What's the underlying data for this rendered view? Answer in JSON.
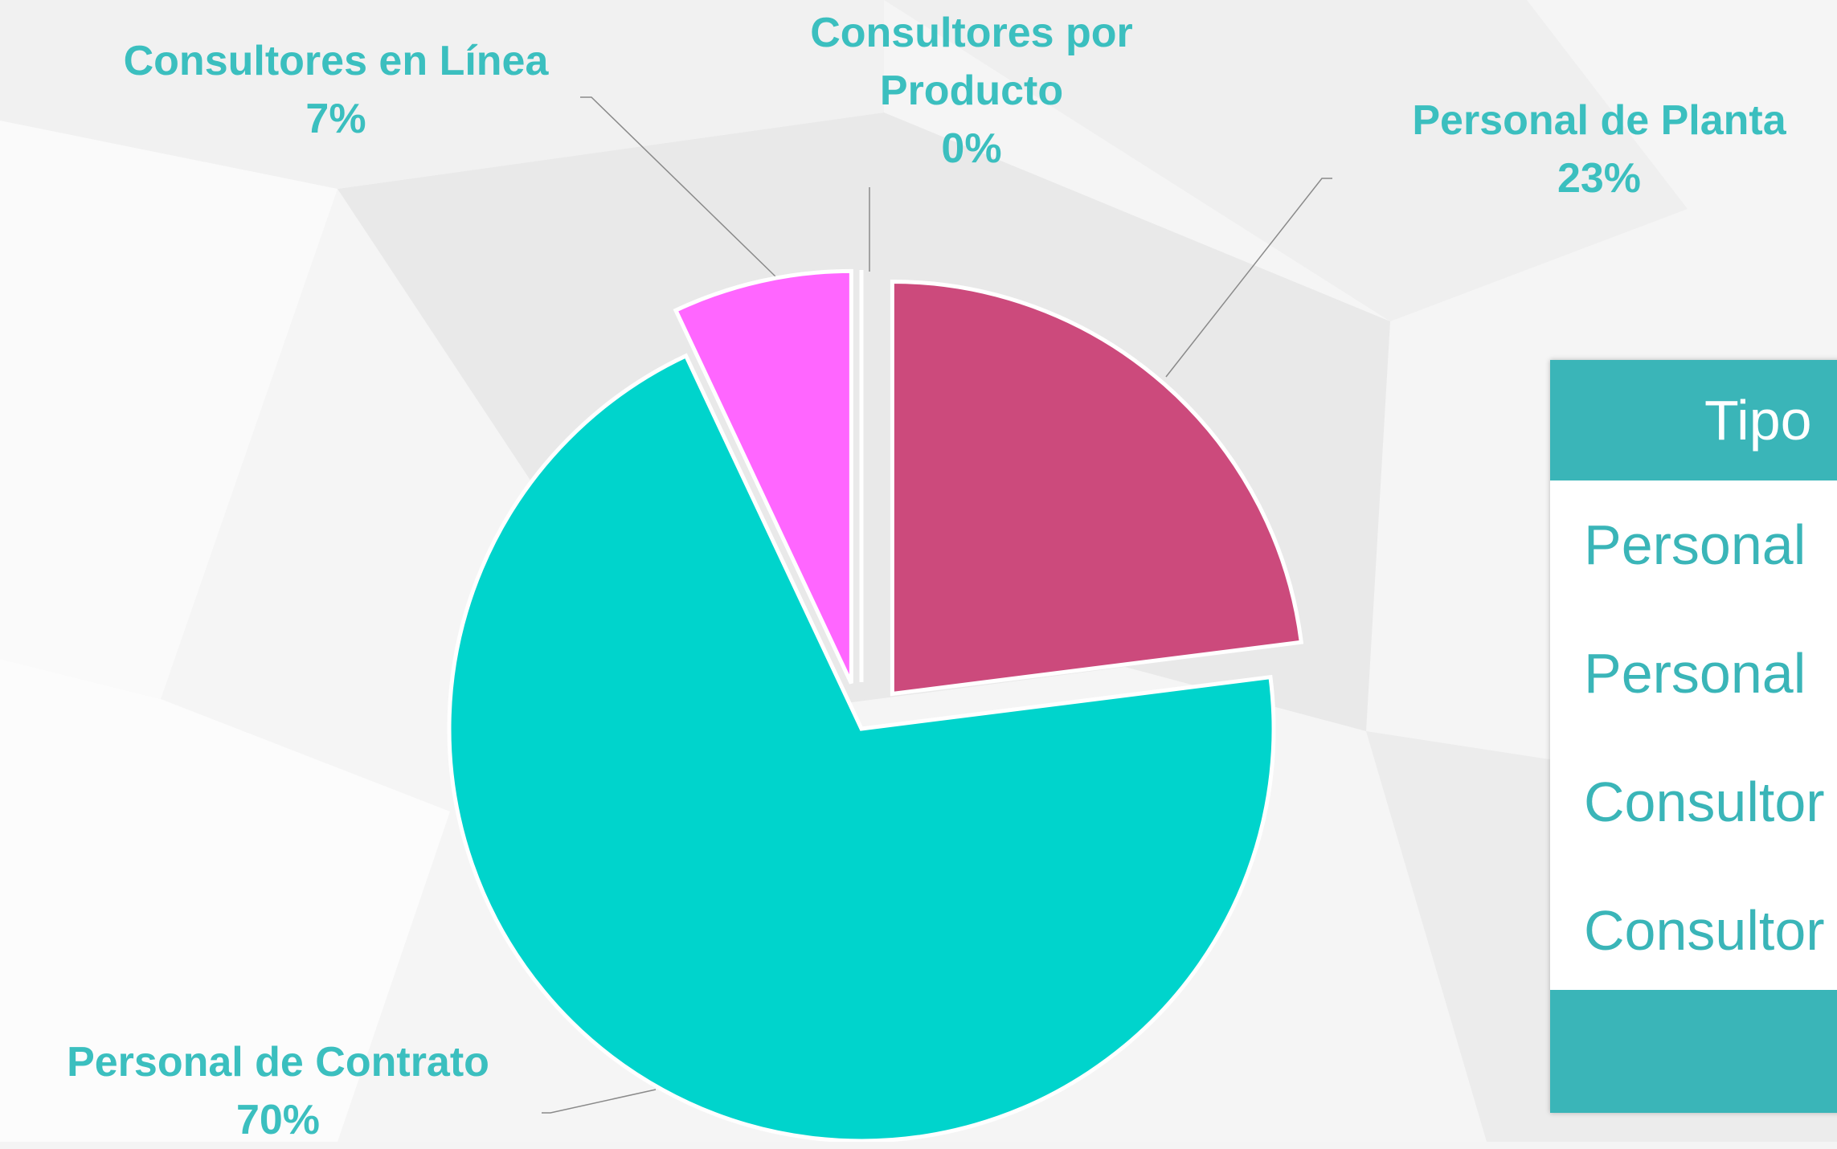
{
  "chart_data": {
    "type": "pie",
    "categories": [
      "Personal de Planta",
      "Personal de Contrato",
      "Consultores en Línea",
      "Consultores por Producto"
    ],
    "values": [
      23,
      70,
      7,
      0
    ],
    "value_labels": [
      "23%",
      "70%",
      "7%",
      "0%"
    ],
    "colors": [
      "#cc4a7c",
      "#00d4cc",
      "#ff66ff",
      "#1fb3b3"
    ]
  },
  "table": {
    "header": "Tipo",
    "rows": [
      "Personal",
      "Personal",
      "Consultor",
      "Consultor"
    ]
  }
}
